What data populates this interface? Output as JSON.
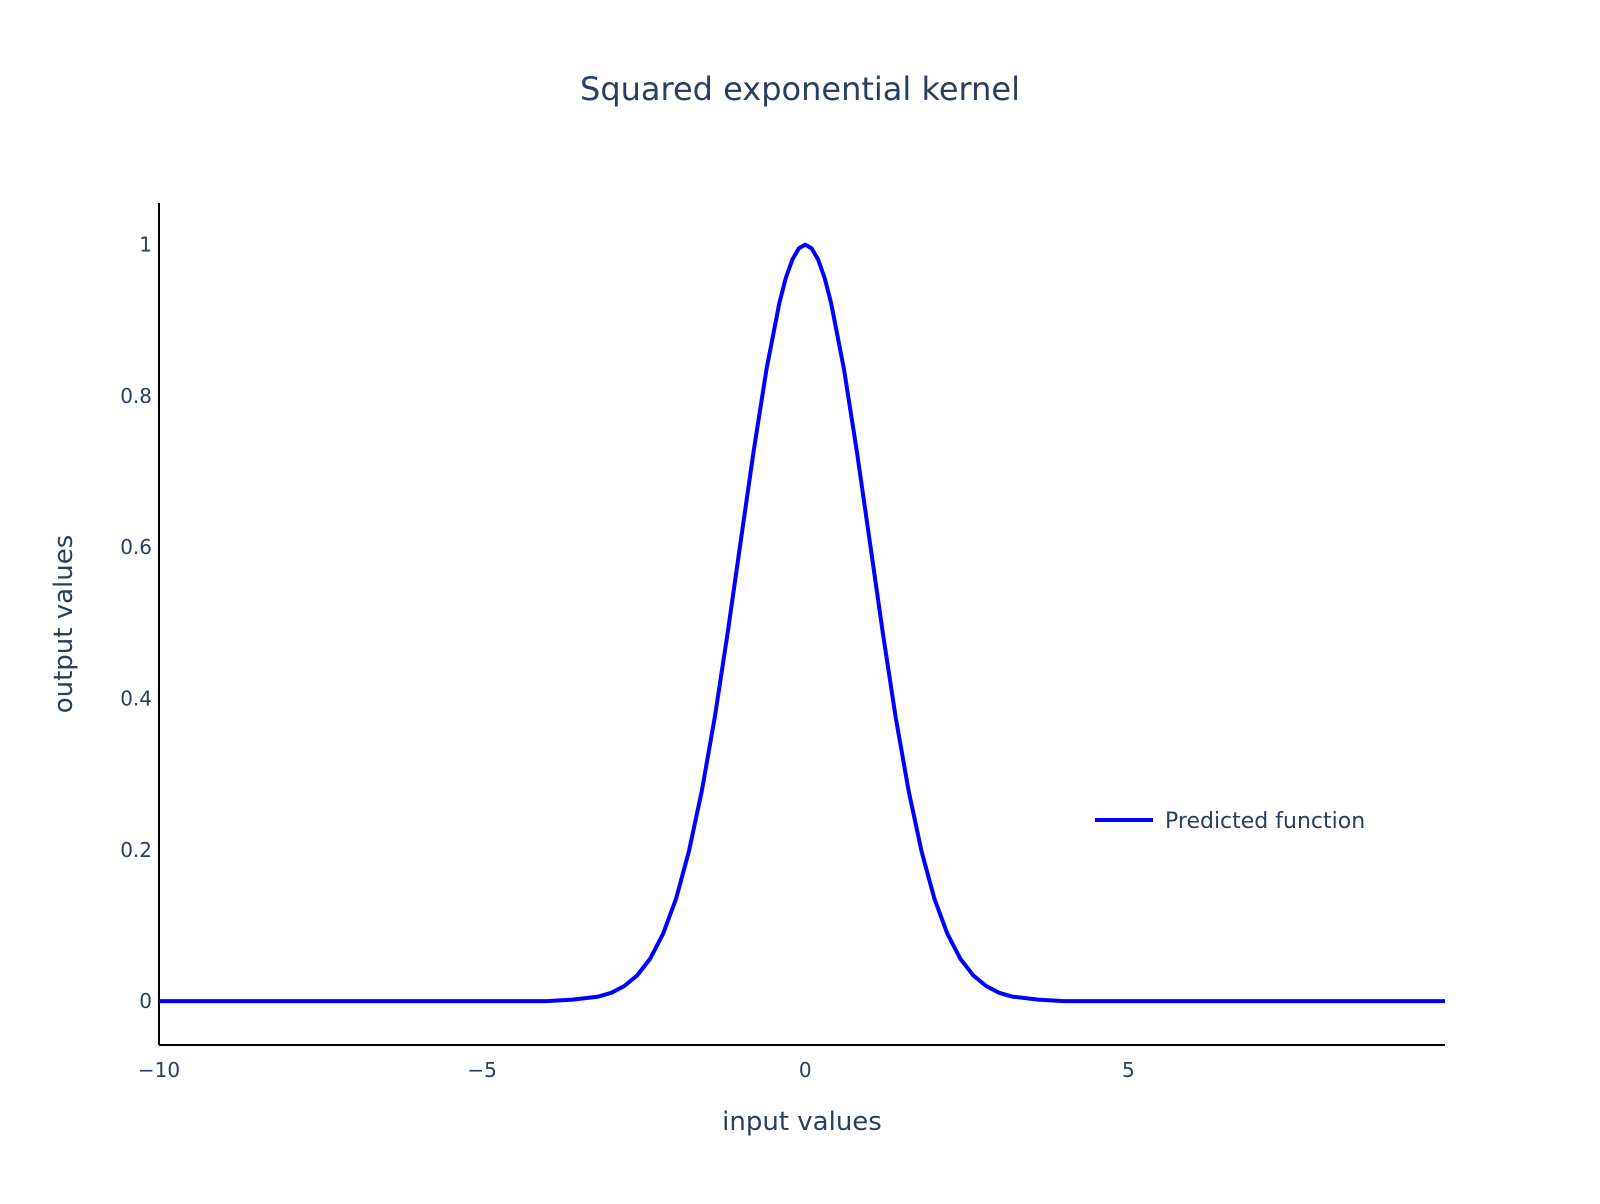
{
  "chart_data": {
    "type": "line",
    "title": "Squared exponential kernel",
    "xlabel": "input values",
    "ylabel": "output values",
    "xlim": [
      -10,
      9.9
    ],
    "ylim": [
      -0.058,
      1.055
    ],
    "x_ticks": [
      -10,
      -5,
      0,
      5
    ],
    "x_tick_labels": [
      "−10",
      "−5",
      "0",
      "5"
    ],
    "y_ticks": [
      0,
      0.2,
      0.4,
      0.6,
      0.8,
      1
    ],
    "y_tick_labels": [
      "0",
      "0.2",
      "0.4",
      "0.6",
      "0.8",
      "1"
    ],
    "grid": false,
    "legend_position": "right",
    "series": [
      {
        "name": "Predicted function",
        "color": "#0000ff",
        "x": [
          -10,
          -9,
          -8,
          -7,
          -6,
          -5,
          -4.5,
          -4,
          -3.6,
          -3.2,
          -3,
          -2.8,
          -2.6,
          -2.4,
          -2.2,
          -2,
          -1.8,
          -1.6,
          -1.4,
          -1.2,
          -1,
          -0.8,
          -0.6,
          -0.4,
          -0.3,
          -0.2,
          -0.1,
          0,
          0.1,
          0.2,
          0.3,
          0.4,
          0.6,
          0.8,
          1,
          1.2,
          1.4,
          1.6,
          1.8,
          2,
          2.2,
          2.4,
          2.6,
          2.8,
          3,
          3.2,
          3.6,
          4,
          4.5,
          5,
          6,
          7,
          8,
          9,
          9.9
        ],
        "y": [
          0,
          0,
          0,
          0,
          0,
          0,
          0,
          0,
          0.002,
          0.006,
          0.011,
          0.02,
          0.034,
          0.056,
          0.089,
          0.135,
          0.198,
          0.278,
          0.375,
          0.487,
          0.607,
          0.726,
          0.835,
          0.923,
          0.956,
          0.98,
          0.995,
          1,
          0.995,
          0.98,
          0.956,
          0.923,
          0.835,
          0.726,
          0.607,
          0.487,
          0.375,
          0.278,
          0.198,
          0.135,
          0.089,
          0.056,
          0.034,
          0.02,
          0.011,
          0.006,
          0.002,
          0,
          0,
          0,
          0,
          0,
          0,
          0,
          0
        ]
      }
    ]
  }
}
